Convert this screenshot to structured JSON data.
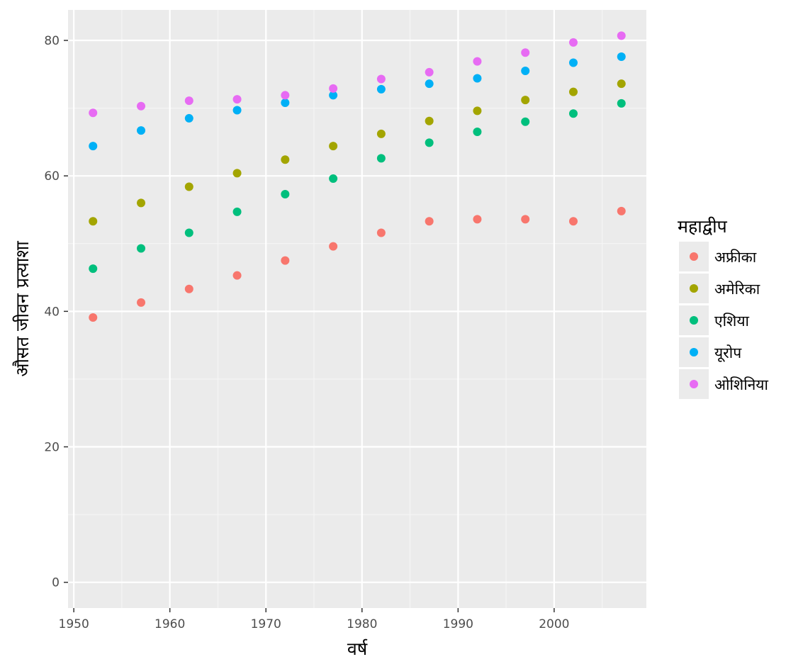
{
  "chart_data": {
    "type": "scatter",
    "title": "",
    "xlabel": "वर्ष",
    "ylabel": "औसत जीवन प्रत्याशा",
    "x": [
      1952,
      1957,
      1962,
      1967,
      1972,
      1977,
      1982,
      1987,
      1992,
      1997,
      2002,
      2007
    ],
    "xlim": [
      1949.4,
      2009.6
    ],
    "ylim": [
      -3.8,
      84.5
    ],
    "x_ticks": [
      1950,
      1960,
      1970,
      1980,
      1990,
      2000
    ],
    "y_ticks": [
      0,
      20,
      40,
      60,
      80
    ],
    "grid": true,
    "legend_position": "right",
    "legend_title": "महाद्वीप",
    "series": [
      {
        "name": "अफ्रीका",
        "color": "#F8766D",
        "values": [
          39.1,
          41.3,
          43.3,
          45.3,
          47.5,
          49.6,
          51.6,
          53.3,
          53.6,
          53.6,
          53.3,
          54.8
        ]
      },
      {
        "name": "अमेरिका",
        "color": "#A3A500",
        "values": [
          53.3,
          56.0,
          58.4,
          60.4,
          62.4,
          64.4,
          66.2,
          68.1,
          69.6,
          71.2,
          72.4,
          73.6
        ]
      },
      {
        "name": "एशिया",
        "color": "#00BF7D",
        "values": [
          46.3,
          49.3,
          51.6,
          54.7,
          57.3,
          59.6,
          62.6,
          64.9,
          66.5,
          68.0,
          69.2,
          70.7
        ]
      },
      {
        "name": "यूरोप",
        "color": "#00B0F6",
        "values": [
          64.4,
          66.7,
          68.5,
          69.7,
          70.8,
          71.9,
          72.8,
          73.6,
          74.4,
          75.5,
          76.7,
          77.6
        ]
      },
      {
        "name": "ओशिनिया",
        "color": "#E76BF3",
        "values": [
          69.3,
          70.3,
          71.1,
          71.3,
          71.9,
          72.9,
          74.3,
          75.3,
          76.9,
          78.2,
          79.7,
          80.7
        ]
      }
    ]
  }
}
